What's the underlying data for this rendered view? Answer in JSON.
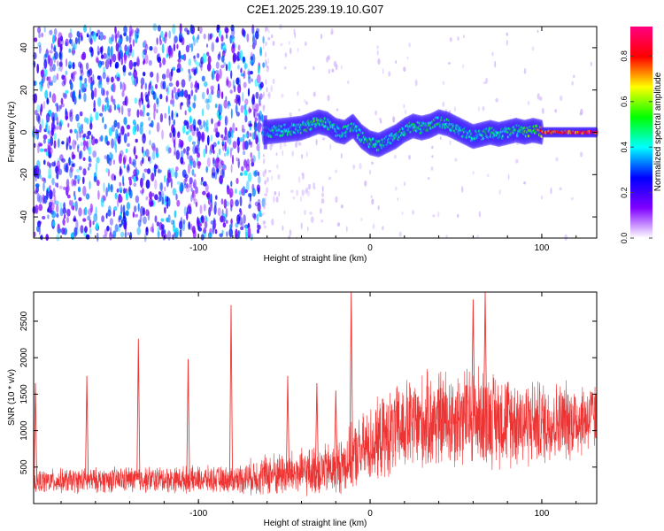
{
  "title": "C2E1.2025.239.19.10.G07",
  "chart_data": [
    {
      "type": "heatmap",
      "name": "spectrogram",
      "xlabel": "Height of straight line (km)",
      "ylabel": "Frequency (Hz)",
      "xlim": [
        -196,
        132
      ],
      "ylim": [
        -50,
        50
      ],
      "xticks": [
        -100,
        0,
        100
      ],
      "xtick_labels": [
        "-100",
        "0",
        "100"
      ],
      "yticks": [
        -40,
        -20,
        0,
        20,
        40
      ],
      "ytick_labels": [
        "-40",
        "-20",
        "0",
        "20",
        "40"
      ],
      "noise_region_x": [
        -196,
        -62
      ],
      "signal_onset_x": -62,
      "signal_track": {
        "x": [
          -62,
          -50,
          -40,
          -30,
          -25,
          -20,
          -15,
          -10,
          -5,
          0,
          5,
          10,
          15,
          20,
          25,
          30,
          35,
          40,
          45,
          50,
          55,
          60,
          65,
          70,
          75,
          80,
          85,
          90,
          95,
          100,
          110,
          120,
          132
        ],
        "freq": [
          0,
          1,
          2,
          5,
          4,
          1,
          0,
          3,
          -2,
          -5,
          -6,
          -4,
          -2,
          1,
          3,
          2,
          3,
          5,
          4,
          2,
          0,
          -2,
          -1,
          0,
          -1,
          0,
          1,
          0,
          1,
          0,
          0,
          0,
          0
        ],
        "amplitude": [
          0.45,
          0.45,
          0.5,
          0.55,
          0.5,
          0.45,
          0.45,
          0.5,
          0.45,
          0.5,
          0.5,
          0.45,
          0.5,
          0.5,
          0.55,
          0.5,
          0.55,
          0.5,
          0.5,
          0.45,
          0.45,
          0.45,
          0.45,
          0.5,
          0.45,
          0.5,
          0.5,
          0.55,
          0.6,
          0.8,
          0.85,
          0.9,
          0.93
        ]
      },
      "colorbar": {
        "label": "Normalized spectral amplitude",
        "range": [
          0,
          0.93
        ],
        "ticks": [
          0,
          0.2,
          0.4,
          0.6,
          0.8
        ],
        "tick_labels": [
          "0.0",
          "0.2",
          "0.4",
          "0.6",
          "0.8"
        ],
        "colors": [
          "#ffffff",
          "#7f00ff",
          "#0000ff",
          "#00ffff",
          "#00ff00",
          "#ffff00",
          "#ff0000",
          "#ff0080"
        ]
      }
    },
    {
      "type": "line",
      "name": "snr",
      "xlabel": "Height of straight line (km)",
      "ylabel": "SNR (10 * v/v)",
      "xlim": [
        -196,
        132
      ],
      "ylim": [
        0,
        2900
      ],
      "xticks": [
        -100,
        0,
        100
      ],
      "xtick_labels": [
        "-100",
        "0",
        "100"
      ],
      "yticks": [
        500,
        1000,
        1500,
        2000,
        2500
      ],
      "ytick_labels": [
        "500",
        "1000",
        "1500",
        "2000",
        "2500"
      ],
      "color": "#ee3333",
      "envelope": {
        "x": [
          -196,
          -180,
          -160,
          -140,
          -120,
          -100,
          -80,
          -60,
          -40,
          -20,
          0,
          20,
          40,
          60,
          80,
          100,
          120,
          132
        ],
        "mean": [
          300,
          310,
          320,
          330,
          330,
          330,
          330,
          400,
          420,
          480,
          800,
          1050,
          1150,
          1200,
          1150,
          1100,
          1150,
          1200
        ],
        "spread": [
          150,
          160,
          160,
          170,
          170,
          170,
          170,
          280,
          300,
          350,
          500,
          600,
          650,
          650,
          600,
          550,
          500,
          450
        ]
      },
      "spikes": [
        {
          "x": -195,
          "value": 1650
        },
        {
          "x": -165,
          "value": 1750
        },
        {
          "x": -135,
          "value": 2260
        },
        {
          "x": -106,
          "value": 1980
        },
        {
          "x": -81,
          "value": 2720
        },
        {
          "x": -11,
          "value": 2900
        },
        {
          "x": -48,
          "value": 1750
        },
        {
          "x": -31,
          "value": 1650
        },
        {
          "x": -20,
          "value": 1550
        },
        {
          "x": 60,
          "value": 2800
        },
        {
          "x": 67,
          "value": 2900
        }
      ]
    }
  ]
}
